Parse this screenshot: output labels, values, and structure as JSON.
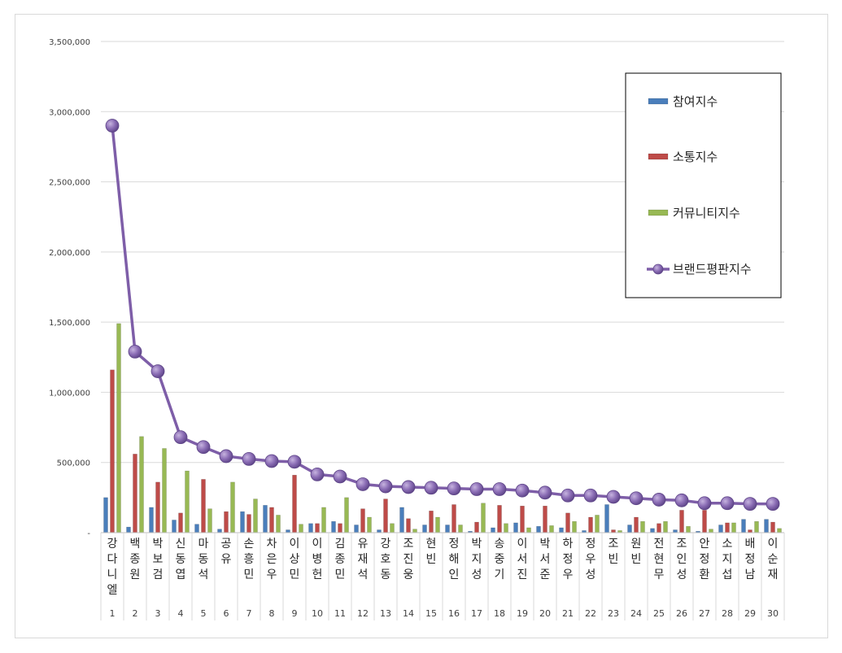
{
  "chart_data": {
    "type": "bar",
    "title": "",
    "xlabel": "",
    "ylabel": "",
    "ylim": [
      0,
      3500000
    ],
    "yticks": [
      "-",
      "500,000",
      "1,000,000",
      "1,500,000",
      "2,000,000",
      "2,500,000",
      "3,000,000",
      "3,500,000"
    ],
    "grid": true,
    "legend_position": "right",
    "indices": [
      "1",
      "2",
      "3",
      "4",
      "5",
      "6",
      "7",
      "8",
      "9",
      "10",
      "11",
      "12",
      "13",
      "14",
      "15",
      "16",
      "17",
      "18",
      "19",
      "20",
      "21",
      "22",
      "23",
      "24",
      "25",
      "26",
      "27",
      "28",
      "29",
      "30"
    ],
    "categories": [
      "강다니엘",
      "백종원",
      "박보검",
      "신동엽",
      "마동석",
      "공유",
      "손흥민",
      "차은우",
      "이상민",
      "이병헌",
      "김종민",
      "유재석",
      "강호동",
      "조진웅",
      "현빈",
      "정해인",
      "박지성",
      "송중기",
      "이서진",
      "박서준",
      "하정우",
      "정우성",
      "조빈",
      "원빈",
      "전현무",
      "조인성",
      "안정환",
      "소지섭",
      "배정남",
      "이순재"
    ],
    "series": [
      {
        "name": "참여지수",
        "kind": "bar",
        "color": "#4a7ebb",
        "values": [
          250000,
          40000,
          180000,
          90000,
          60000,
          25000,
          150000,
          195000,
          20000,
          65000,
          80000,
          55000,
          20000,
          180000,
          55000,
          55000,
          10000,
          35000,
          70000,
          45000,
          35000,
          15000,
          200000,
          55000,
          30000,
          20000,
          10000,
          55000,
          95000,
          95000
        ]
      },
      {
        "name": "소통지수",
        "kind": "bar",
        "color": "#be4b48",
        "values": [
          1160000,
          560000,
          360000,
          140000,
          380000,
          150000,
          130000,
          180000,
          410000,
          65000,
          65000,
          170000,
          240000,
          100000,
          155000,
          200000,
          75000,
          195000,
          190000,
          190000,
          140000,
          110000,
          20000,
          110000,
          65000,
          160000,
          160000,
          70000,
          20000,
          75000
        ]
      },
      {
        "name": "커뮤니티지수",
        "kind": "bar",
        "color": "#98b954",
        "values": [
          1490000,
          685000,
          600000,
          440000,
          170000,
          360000,
          240000,
          125000,
          60000,
          180000,
          250000,
          110000,
          65000,
          25000,
          110000,
          55000,
          210000,
          65000,
          35000,
          50000,
          80000,
          125000,
          15000,
          80000,
          80000,
          45000,
          25000,
          70000,
          80000,
          30000
        ]
      },
      {
        "name": "브랜드평판지수",
        "kind": "line",
        "color": "#7e5ea8",
        "values": [
          2900000,
          1290000,
          1150000,
          680000,
          610000,
          545000,
          525000,
          510000,
          505000,
          415000,
          400000,
          345000,
          330000,
          325000,
          320000,
          315000,
          310000,
          310000,
          300000,
          285000,
          265000,
          265000,
          255000,
          245000,
          235000,
          230000,
          210000,
          210000,
          205000,
          205000
        ]
      }
    ]
  }
}
